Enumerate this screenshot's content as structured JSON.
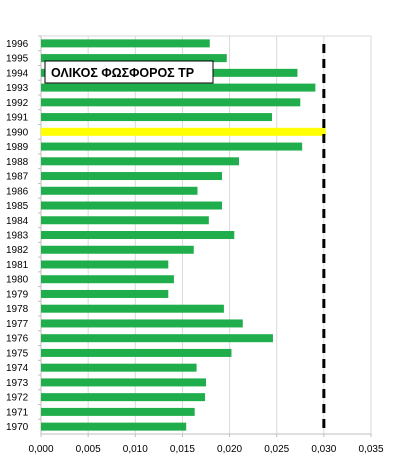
{
  "chart_data": {
    "type": "bar",
    "orientation": "horizontal",
    "title": "ΟΛΙΚΟΣ ΦΩΣΦΟΡΟΣ TP",
    "categories": [
      "1996",
      "1995",
      "1994",
      "1993",
      "1992",
      "1991",
      "1990",
      "1989",
      "1988",
      "1987",
      "1986",
      "1985",
      "1984",
      "1983",
      "1982",
      "1981",
      "1980",
      "1979",
      "1978",
      "1977",
      "1976",
      "1975",
      "1974",
      "1973",
      "1972",
      "1971",
      "1970"
    ],
    "values": [
      0.0179,
      0.0197,
      0.0272,
      0.0291,
      0.0275,
      0.0245,
      0.0302,
      0.0277,
      0.021,
      0.0192,
      0.0166,
      0.0192,
      0.0178,
      0.0205,
      0.0162,
      0.0135,
      0.0141,
      0.0135,
      0.0194,
      0.0214,
      0.0246,
      0.0202,
      0.0165,
      0.0175,
      0.0174,
      0.0163,
      0.0154
    ],
    "highlight_category": "1990",
    "reference_line": 0.03,
    "xlim": [
      0,
      0.035
    ],
    "xticks": [
      "0,000",
      "0,005",
      "0,010",
      "0,015",
      "0,020",
      "0,025",
      "0,030",
      "0,035"
    ],
    "colors": {
      "bar": "#1fae4b",
      "highlight": "#ffff00",
      "reference": "#000000",
      "grid": "#d9d9d9"
    },
    "grid": true
  }
}
